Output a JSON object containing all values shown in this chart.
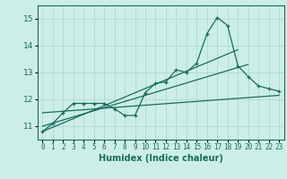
{
  "xlabel": "Humidex (Indice chaleur)",
  "ylabel": "",
  "background_color": "#cceee8",
  "grid_color": "#aad4ce",
  "line_color": "#1a6b5a",
  "xlim": [
    -0.5,
    23.5
  ],
  "ylim": [
    10.5,
    15.5
  ],
  "yticks": [
    11,
    12,
    13,
    14,
    15
  ],
  "xticks": [
    0,
    1,
    2,
    3,
    4,
    5,
    6,
    7,
    8,
    9,
    10,
    11,
    12,
    13,
    14,
    15,
    16,
    17,
    18,
    19,
    20,
    21,
    22,
    23
  ],
  "main_x": [
    0,
    1,
    2,
    3,
    4,
    5,
    6,
    7,
    8,
    9,
    10,
    11,
    12,
    13,
    14,
    15,
    16,
    17,
    18,
    19,
    20,
    21,
    22,
    23
  ],
  "main_y": [
    10.8,
    11.1,
    11.5,
    11.85,
    11.85,
    11.85,
    11.85,
    11.65,
    11.4,
    11.4,
    12.25,
    12.6,
    12.65,
    13.1,
    13.0,
    13.35,
    14.45,
    15.05,
    14.75,
    13.25,
    12.85,
    12.5,
    12.4,
    12.3
  ],
  "trend1_x": [
    0,
    19
  ],
  "trend1_y": [
    10.8,
    13.85
  ],
  "trend2_x": [
    0,
    20
  ],
  "trend2_y": [
    11.0,
    13.3
  ],
  "trend3_x": [
    0,
    23
  ],
  "trend3_y": [
    11.5,
    12.15
  ]
}
